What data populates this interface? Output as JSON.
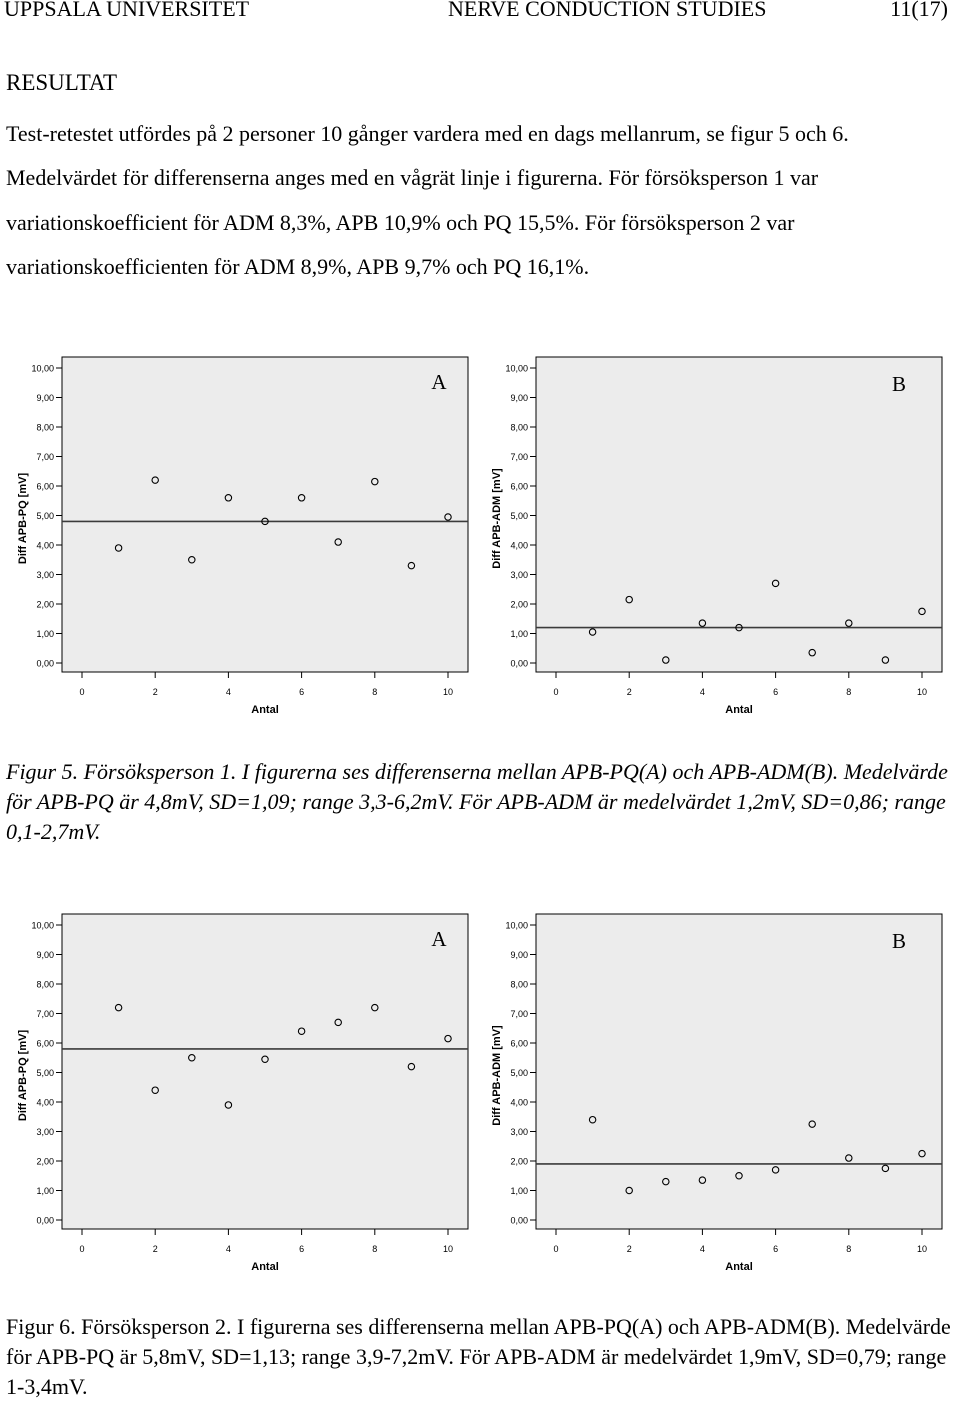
{
  "header": {
    "left": "UPPSALA UNIVERSITET",
    "center": "NERVE CONDUCTION STUDIES",
    "right": "11(17)"
  },
  "section_heading": "RESULTAT",
  "paragraph": "Test-retestet utfördes på 2 personer 10 gånger vardera med en dags mellanrum, se figur 5 och 6. Medelvärdet för differenserna anges med en vågrät linje i figurerna. För försöksperson 1 var variationskoefficient för ADM 8,3%, APB 10,9% och PQ 15,5%. För försöksperson 2 var variationskoefficienten för ADM 8,9%, APB 9,7% och PQ 16,1%.",
  "captions": {
    "fig5_prefix": "Figur 5. Försöksperson 1.",
    "fig5_text": " I figurerna ses differenserna mellan APB-PQ(A) och APB-ADM(B). Medelvärde för APB-PQ är 4,8mV, SD=1,09; range 3,3-6,2mV. För APB-ADM är medelvärdet 1,2mV, SD=0,86; range 0,1-2,7mV.",
    "fig6_prefix": "Figur 6. Försöksperson 2.",
    "fig6_text": " I figurerna ses differenserna mellan APB-PQ(A) och APB-ADM(B). Medelvärde för APB-PQ är 5,8mV, SD=1,13; range 3,9-7,2mV. För APB-ADM är medelvärdet 1,9mV, SD=0,79; range 1-3,4mV."
  },
  "colors": {
    "plot_background": "#ececec",
    "marker_stroke": "#000000",
    "mean_line": "#3b3b3b"
  },
  "chart_data": [
    {
      "figure": "5",
      "panel": "A",
      "type": "scatter",
      "xlabel": "Antal",
      "ylabel": "Diff APB-PQ [mV]",
      "xlim": [
        0,
        10
      ],
      "ylim": [
        0,
        10
      ],
      "grid": false,
      "xticks": [
        "0",
        "2",
        "4",
        "6",
        "8",
        "10"
      ],
      "yticks": [
        "0,00",
        "1,00",
        "2,00",
        "3,00",
        "4,00",
        "5,00",
        "6,00",
        "7,00",
        "8,00",
        "9,00",
        "10,00"
      ],
      "x": [
        1,
        2,
        3,
        4,
        5,
        6,
        7,
        8,
        9,
        10
      ],
      "y": [
        3.9,
        6.2,
        3.5,
        5.6,
        4.8,
        5.6,
        4.1,
        6.15,
        3.3,
        4.95
      ],
      "mean_line": 4.8
    },
    {
      "figure": "5",
      "panel": "B",
      "type": "scatter",
      "xlabel": "Antal",
      "ylabel": "Diff APB-ADM [mV]",
      "xlim": [
        0,
        10
      ],
      "ylim": [
        0,
        10
      ],
      "grid": false,
      "xticks": [
        "0",
        "2",
        "4",
        "6",
        "8",
        "10"
      ],
      "yticks": [
        "0,00",
        "1,00",
        "2,00",
        "3,00",
        "4,00",
        "5,00",
        "6,00",
        "7,00",
        "8,00",
        "9,00",
        "10,00"
      ],
      "x": [
        1,
        2,
        3,
        4,
        5,
        6,
        7,
        8,
        9,
        10
      ],
      "y": [
        1.05,
        2.15,
        0.1,
        1.35,
        1.2,
        2.7,
        0.35,
        1.35,
        0.1,
        1.75
      ],
      "mean_line": 1.2
    },
    {
      "figure": "6",
      "panel": "A",
      "type": "scatter",
      "xlabel": "Antal",
      "ylabel": "Diff APB-PQ [mV]",
      "xlim": [
        0,
        10
      ],
      "ylim": [
        0,
        10
      ],
      "grid": false,
      "xticks": [
        "0",
        "2",
        "4",
        "6",
        "8",
        "10"
      ],
      "yticks": [
        "0,00",
        "1,00",
        "2,00",
        "3,00",
        "4,00",
        "5,00",
        "6,00",
        "7,00",
        "8,00",
        "9,00",
        "10,00"
      ],
      "x": [
        1,
        2,
        3,
        4,
        5,
        6,
        7,
        8,
        9,
        10
      ],
      "y": [
        7.2,
        4.4,
        5.5,
        3.9,
        5.45,
        6.4,
        6.7,
        7.2,
        5.2,
        6.15
      ],
      "mean_line": 5.8
    },
    {
      "figure": "6",
      "panel": "B",
      "type": "scatter",
      "xlabel": "Antal",
      "ylabel": "Diff APB-ADM [mV]",
      "xlim": [
        0,
        10
      ],
      "ylim": [
        0,
        10
      ],
      "grid": false,
      "xticks": [
        "0",
        "2",
        "4",
        "6",
        "8",
        "10"
      ],
      "yticks": [
        "0,00",
        "1,00",
        "2,00",
        "3,00",
        "4,00",
        "5,00",
        "6,00",
        "7,00",
        "8,00",
        "9,00",
        "10,00"
      ],
      "x": [
        1,
        2,
        3,
        4,
        5,
        6,
        7,
        8,
        9,
        10
      ],
      "y": [
        3.4,
        1.0,
        1.3,
        1.35,
        1.5,
        1.7,
        3.25,
        2.1,
        1.75,
        2.25
      ],
      "mean_line": 1.9
    }
  ]
}
